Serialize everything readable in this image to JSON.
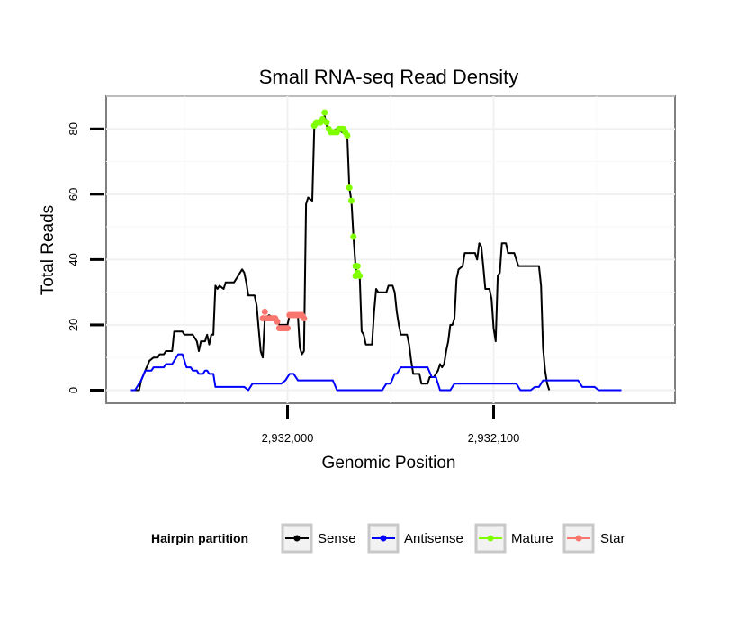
{
  "chart_data": {
    "type": "line",
    "title": "Small RNA-seq Read Density",
    "xlabel": "Genomic Position",
    "ylabel": "Total Reads",
    "xlim": [
      2931912,
      2932188
    ],
    "ylim": [
      -4,
      90
    ],
    "x_ticks": [
      2932000,
      2932100
    ],
    "x_tick_labels": [
      "2,932,000",
      "2,932,100"
    ],
    "y_ticks": [
      0,
      20,
      40,
      60,
      80
    ],
    "y_tick_labels": [
      "0",
      "20",
      "40",
      "60",
      "80"
    ],
    "grid": true,
    "legend": {
      "title": "Hairpin partition",
      "position": "bottom",
      "entries": [
        "Sense",
        "Antisense",
        "Mature",
        "Star"
      ]
    },
    "series": [
      {
        "name": "Sense",
        "color": "#000000",
        "style": "line",
        "points": [
          [
            2931924,
            0
          ],
          [
            2931928,
            0
          ],
          [
            2931929,
            3
          ],
          [
            2931931,
            6
          ],
          [
            2931933,
            9
          ],
          [
            2931935,
            10
          ],
          [
            2931937,
            10
          ],
          [
            2931938,
            11
          ],
          [
            2931940,
            11
          ],
          [
            2931941,
            12
          ],
          [
            2931944,
            12
          ],
          [
            2931945,
            18
          ],
          [
            2931949,
            18
          ],
          [
            2931950,
            17
          ],
          [
            2931954,
            17
          ],
          [
            2931956,
            15
          ],
          [
            2931957,
            12
          ],
          [
            2931958,
            15
          ],
          [
            2931960,
            15
          ],
          [
            2931961,
            17
          ],
          [
            2931962,
            14
          ],
          [
            2931963,
            17
          ],
          [
            2931964,
            17
          ],
          [
            2931965,
            32
          ],
          [
            2931966,
            31
          ],
          [
            2931967,
            32
          ],
          [
            2931969,
            31
          ],
          [
            2931970,
            33
          ],
          [
            2931974,
            33
          ],
          [
            2931976,
            35
          ],
          [
            2931977,
            36
          ],
          [
            2931978,
            37
          ],
          [
            2931979,
            36
          ],
          [
            2931980,
            33
          ],
          [
            2931981,
            29
          ],
          [
            2931984,
            29
          ],
          [
            2931985,
            26
          ],
          [
            2931986,
            19
          ],
          [
            2931987,
            12
          ],
          [
            2931988,
            10
          ],
          [
            2931989,
            22
          ],
          [
            2931991,
            23
          ],
          [
            2931994,
            22
          ],
          [
            2931995,
            22
          ],
          [
            2931996,
            20
          ],
          [
            2932000,
            20
          ],
          [
            2932001,
            23
          ],
          [
            2932005,
            23
          ],
          [
            2932006,
            13
          ],
          [
            2932007,
            11
          ],
          [
            2932008,
            12
          ],
          [
            2932009,
            57
          ],
          [
            2932010,
            59
          ],
          [
            2932012,
            58
          ],
          [
            2932013,
            81
          ],
          [
            2932017,
            82
          ],
          [
            2932018,
            84
          ],
          [
            2932019,
            81
          ],
          [
            2932020,
            79
          ],
          [
            2932024,
            80
          ],
          [
            2932029,
            78
          ],
          [
            2932030,
            62
          ],
          [
            2932031,
            58
          ],
          [
            2932032,
            47
          ],
          [
            2932033,
            38
          ],
          [
            2932034,
            35
          ],
          [
            2932035,
            35
          ],
          [
            2932036,
            18
          ],
          [
            2932037,
            17
          ],
          [
            2932038,
            14
          ],
          [
            2932041,
            14
          ],
          [
            2932042,
            24
          ],
          [
            2932043,
            31
          ],
          [
            2932044,
            30
          ],
          [
            2932048,
            30
          ],
          [
            2932049,
            32
          ],
          [
            2932051,
            32
          ],
          [
            2932052,
            30
          ],
          [
            2932053,
            24
          ],
          [
            2932054,
            20
          ],
          [
            2932055,
            17
          ],
          [
            2932058,
            17
          ],
          [
            2932059,
            14
          ],
          [
            2932060,
            9
          ],
          [
            2932061,
            5
          ],
          [
            2932064,
            5
          ],
          [
            2932065,
            2
          ],
          [
            2932068,
            2
          ],
          [
            2932069,
            4
          ],
          [
            2932071,
            4
          ],
          [
            2932072,
            5
          ],
          [
            2932073,
            6
          ],
          [
            2932074,
            8
          ],
          [
            2932075,
            7
          ],
          [
            2932076,
            8
          ],
          [
            2932077,
            12
          ],
          [
            2932078,
            15
          ],
          [
            2932079,
            20
          ],
          [
            2932080,
            20
          ],
          [
            2932081,
            22
          ],
          [
            2932082,
            34
          ],
          [
            2932083,
            37
          ],
          [
            2932085,
            38
          ],
          [
            2932086,
            42
          ],
          [
            2932089,
            42
          ],
          [
            2932091,
            42
          ],
          [
            2932092,
            40
          ],
          [
            2932093,
            45
          ],
          [
            2932094,
            44
          ],
          [
            2932095,
            38
          ],
          [
            2932096,
            31
          ],
          [
            2932098,
            31
          ],
          [
            2932099,
            28
          ],
          [
            2932100,
            19
          ],
          [
            2932101,
            15
          ],
          [
            2932102,
            35
          ],
          [
            2932103,
            36
          ],
          [
            2932104,
            45
          ],
          [
            2932106,
            45
          ],
          [
            2932107,
            42
          ],
          [
            2932110,
            42
          ],
          [
            2932111,
            40
          ],
          [
            2932112,
            38
          ],
          [
            2932122,
            38
          ],
          [
            2932123,
            32
          ],
          [
            2932124,
            13
          ],
          [
            2932125,
            6
          ],
          [
            2932126,
            2
          ],
          [
            2932127,
            0
          ]
        ]
      },
      {
        "name": "Antisense",
        "color": "#0000ff",
        "style": "line",
        "points": [
          [
            2931924,
            0
          ],
          [
            2931926,
            0
          ],
          [
            2931927,
            1
          ],
          [
            2931929,
            3
          ],
          [
            2931931,
            6
          ],
          [
            2931934,
            6
          ],
          [
            2931935,
            7
          ],
          [
            2931940,
            7
          ],
          [
            2931941,
            8
          ],
          [
            2931944,
            8
          ],
          [
            2931945,
            9
          ],
          [
            2931947,
            11
          ],
          [
            2931949,
            11
          ],
          [
            2931951,
            7
          ],
          [
            2931953,
            7
          ],
          [
            2931954,
            6
          ],
          [
            2931956,
            6
          ],
          [
            2931957,
            5
          ],
          [
            2931959,
            5
          ],
          [
            2931960,
            6
          ],
          [
            2931961,
            6
          ],
          [
            2931962,
            5
          ],
          [
            2931964,
            5
          ],
          [
            2931965,
            1
          ],
          [
            2931979,
            1
          ],
          [
            2931981,
            0
          ],
          [
            2931983,
            2
          ],
          [
            2931997,
            2
          ],
          [
            2931999,
            3
          ],
          [
            2932001,
            5
          ],
          [
            2932003,
            5
          ],
          [
            2932005,
            3
          ],
          [
            2932022,
            3
          ],
          [
            2932024,
            0
          ],
          [
            2932046,
            0
          ],
          [
            2932048,
            2
          ],
          [
            2932050,
            2
          ],
          [
            2932052,
            5
          ],
          [
            2932053,
            5
          ],
          [
            2932055,
            7
          ],
          [
            2932068,
            7
          ],
          [
            2932070,
            4
          ],
          [
            2932072,
            4
          ],
          [
            2932074,
            0
          ],
          [
            2932079,
            0
          ],
          [
            2932081,
            2
          ],
          [
            2932111,
            2
          ],
          [
            2932113,
            0
          ],
          [
            2932118,
            0
          ],
          [
            2932120,
            1
          ],
          [
            2932122,
            1
          ],
          [
            2932124,
            3
          ],
          [
            2932141,
            3
          ],
          [
            2932143,
            1
          ],
          [
            2932149,
            1
          ],
          [
            2932151,
            0
          ],
          [
            2932162,
            0
          ]
        ]
      },
      {
        "name": "Mature",
        "color": "#7fff00",
        "style": "points",
        "points": [
          [
            2932013,
            81
          ],
          [
            2932014,
            82
          ],
          [
            2932015,
            82
          ],
          [
            2932016,
            82
          ],
          [
            2932017,
            83
          ],
          [
            2932018,
            85
          ],
          [
            2932019,
            82
          ],
          [
            2932020,
            80
          ],
          [
            2932021,
            79
          ],
          [
            2932022,
            79
          ],
          [
            2932023,
            79
          ],
          [
            2932024,
            79
          ],
          [
            2932025,
            80
          ],
          [
            2932026,
            80
          ],
          [
            2932027,
            80
          ],
          [
            2932028,
            79
          ],
          [
            2932029,
            78
          ],
          [
            2932030,
            62
          ],
          [
            2932031,
            58
          ],
          [
            2932032,
            47
          ],
          [
            2932033,
            38
          ],
          [
            2932033,
            35
          ],
          [
            2932034,
            38
          ],
          [
            2932034,
            36
          ],
          [
            2932035,
            35
          ]
        ]
      },
      {
        "name": "Star",
        "color": "#f8766d",
        "style": "points",
        "points": [
          [
            2931988,
            22
          ],
          [
            2931989,
            24
          ],
          [
            2931990,
            22
          ],
          [
            2931991,
            22
          ],
          [
            2931992,
            22
          ],
          [
            2931993,
            22
          ],
          [
            2931994,
            22
          ],
          [
            2931995,
            21
          ],
          [
            2931996,
            19
          ],
          [
            2931997,
            19
          ],
          [
            2931998,
            19
          ],
          [
            2931999,
            19
          ],
          [
            2932000,
            19
          ],
          [
            2932001,
            23
          ],
          [
            2932002,
            23
          ],
          [
            2932003,
            23
          ],
          [
            2932004,
            23
          ],
          [
            2932005,
            23
          ],
          [
            2932006,
            23
          ],
          [
            2932007,
            23
          ],
          [
            2932008,
            22
          ]
        ]
      }
    ]
  }
}
